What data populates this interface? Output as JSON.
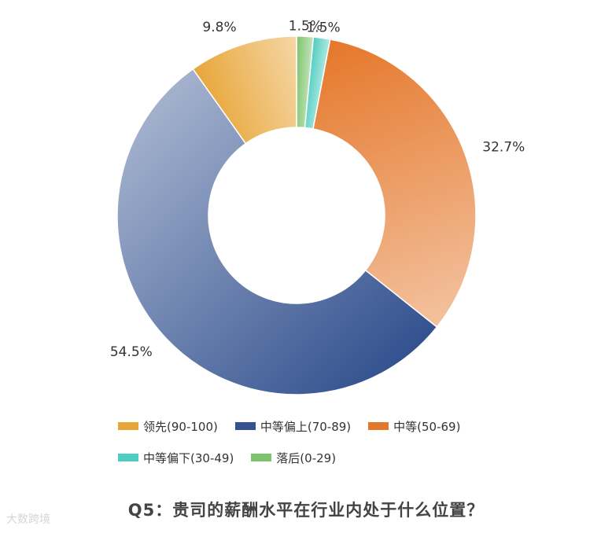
{
  "chart_data": {
    "type": "pie",
    "donut": true,
    "title": "Q5：贵司的薪酬水平在行业内处于什么位置？",
    "categories": [
      "领先(90-100)",
      "中等偏上(70-89)",
      "中等(50-69)",
      "中等偏下(30-49)",
      "落后(0-29)"
    ],
    "values": [
      9.8,
      54.5,
      32.7,
      1.5,
      1.5
    ],
    "value_labels": [
      "9.8%",
      "54.5%",
      "32.7%",
      "1.5%",
      "1.5%"
    ],
    "colors": [
      "#e8a63a",
      "#33528f",
      "#e5772a",
      "#4ecdc0",
      "#7cc36b"
    ],
    "legend_placement": "bottom"
  },
  "watermark": "大数跨境",
  "legend": {
    "rows": [
      [
        {
          "label": "领先(90-100)",
          "color": "#e8a63a"
        },
        {
          "label": "中等偏上(70-89)",
          "color": "#33528f"
        },
        {
          "label": "中等(50-69)",
          "color": "#e5772a"
        }
      ],
      [
        {
          "label": "中等偏下(30-49)",
          "color": "#4ecdc0"
        },
        {
          "label": "落后(0-29)",
          "color": "#7cc36b"
        }
      ]
    ]
  }
}
